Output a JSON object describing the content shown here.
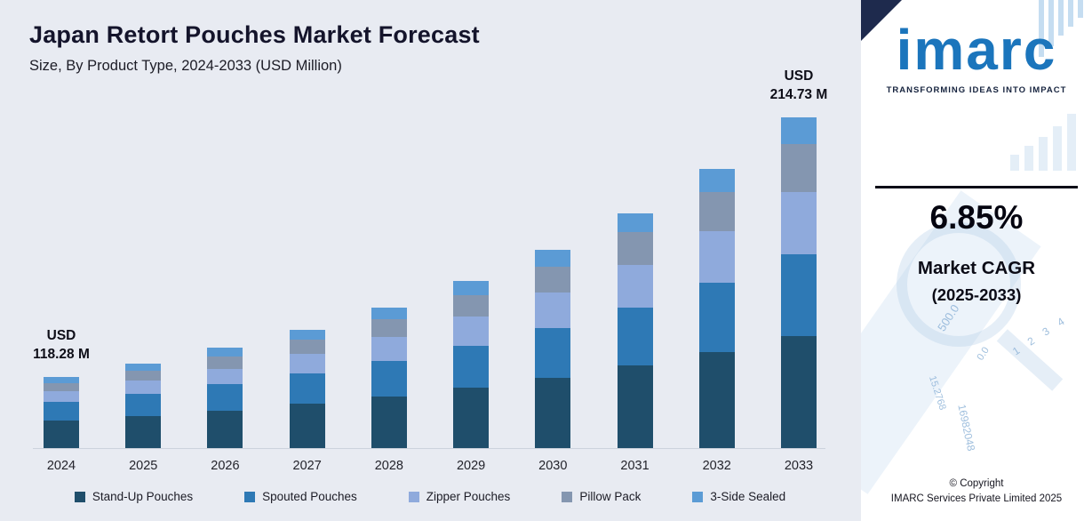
{
  "chart_data": {
    "type": "bar",
    "stacked": true,
    "title": "Japan Retort Pouches Market Forecast",
    "subtitle": "Size, By Product Type, 2024-2033 (USD Million)",
    "unit": "USD Million",
    "grid": false,
    "legend_position": "bottom",
    "categories": [
      "2024",
      "2025",
      "2026",
      "2027",
      "2028",
      "2029",
      "2030",
      "2031",
      "2032",
      "2033"
    ],
    "totals": [
      118.28,
      126.38,
      135.04,
      144.29,
      154.17,
      164.73,
      176.02,
      188.08,
      200.96,
      214.73
    ],
    "series": [
      {
        "name": "Stand-Up Pouches",
        "color": "#1F4E6B",
        "values": [
          45.83,
          48.3,
          50.9,
          53.63,
          56.49,
          59.49,
          62.63,
          65.94,
          69.39,
          73.01
        ]
      },
      {
        "name": "Spouted Pouches",
        "color": "#2E79B5",
        "values": [
          31.05,
          32.93,
          34.92,
          37.04,
          39.27,
          41.64,
          44.15,
          46.81,
          49.62,
          52.61
        ]
      },
      {
        "name": "Zipper Pouches",
        "color": "#8FAADC",
        "values": [
          17.74,
          19.51,
          21.46,
          23.56,
          25.87,
          28.37,
          31.1,
          34.06,
          37.3,
          40.8
        ]
      },
      {
        "name": "Pillow Pack",
        "color": "#8496B0",
        "values": [
          13.31,
          14.67,
          16.16,
          17.79,
          19.56,
          21.51,
          23.62,
          25.92,
          28.42,
          31.14
        ]
      },
      {
        "name": "3-Side Sealed",
        "color": "#5B9BD5",
        "values": [
          10.35,
          10.96,
          11.59,
          12.26,
          12.98,
          13.72,
          14.52,
          15.36,
          16.24,
          17.18
        ]
      }
    ],
    "annotations": [
      {
        "category": "2024",
        "lines": [
          "USD",
          "118.28 M"
        ]
      },
      {
        "category": "2033",
        "lines": [
          "USD",
          "214.73 M"
        ]
      }
    ]
  },
  "branding": {
    "logo_text": "imarc",
    "tagline": "TRANSFORMING IDEAS INTO IMPACT",
    "cagr_value": "6.85%",
    "cagr_label_line1": "Market CAGR",
    "cagr_label_line2": "(2025-2033)",
    "copyright_line1": "© Copyright",
    "copyright_line2": "IMARC Services Private Limited 2025",
    "watermark_texts": [
      "500.0",
      "0.0",
      "1 2 3 4",
      "15.2768",
      "16982048"
    ]
  }
}
